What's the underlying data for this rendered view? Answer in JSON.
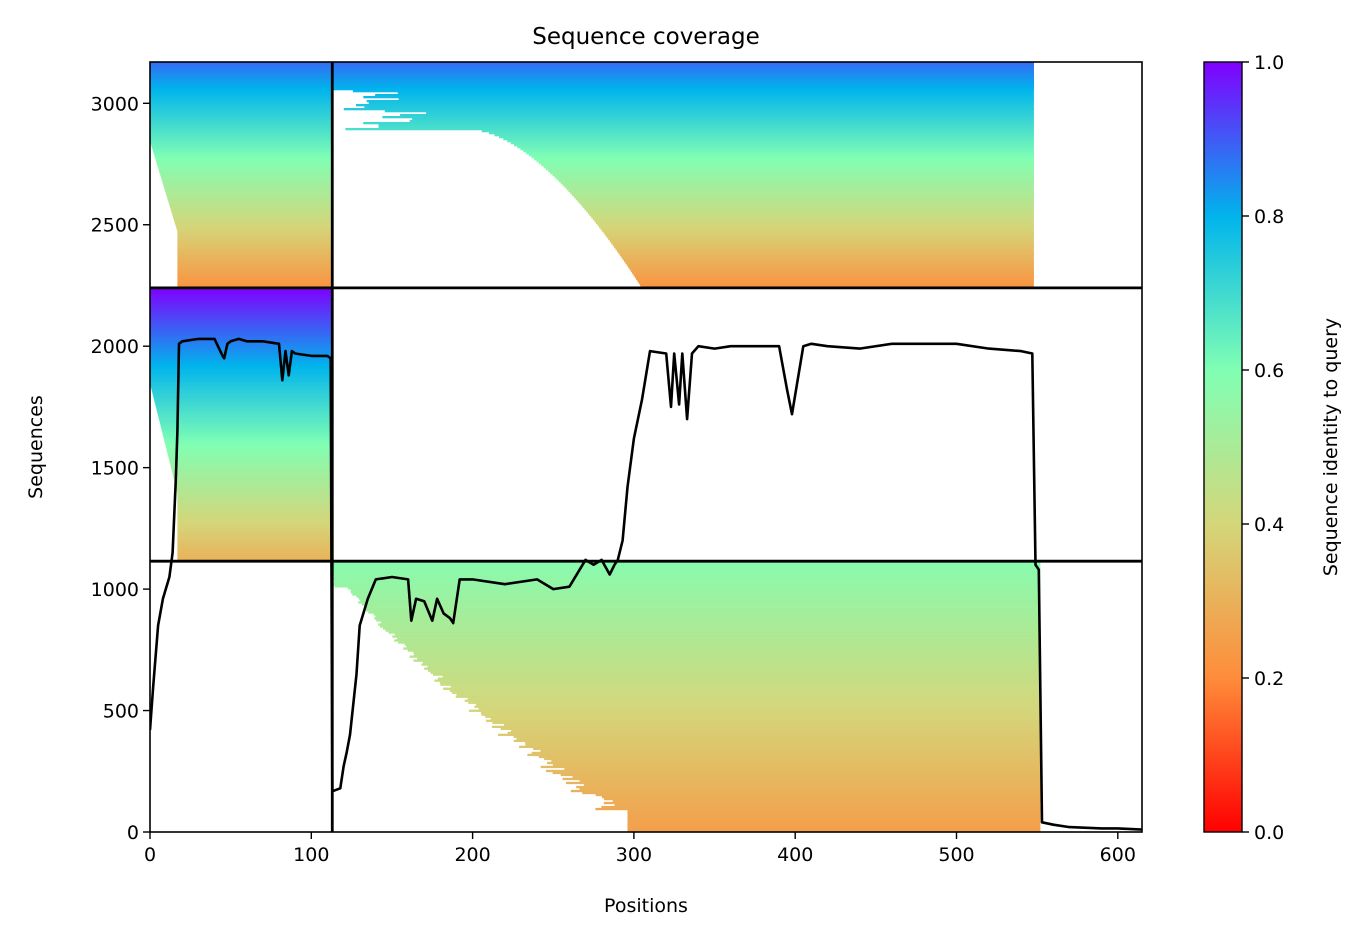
{
  "chart_data": {
    "type": "heatmap",
    "title": "Sequence coverage",
    "xlabel": "Positions",
    "ylabel": "Sequences",
    "xlim": [
      0,
      615
    ],
    "ylim": [
      0,
      3170
    ],
    "xticks": [
      0,
      100,
      200,
      300,
      400,
      500,
      600
    ],
    "yticks": [
      0,
      500,
      1000,
      1500,
      2000,
      2500,
      3000
    ],
    "colorbar": {
      "label": "Sequence identity to query",
      "range": [
        0.0,
        1.0
      ],
      "ticks": [
        0.0,
        0.2,
        0.4,
        0.6,
        0.8,
        1.0
      ],
      "colormap": "rainbow_r",
      "colors": [
        "#ff0000",
        "#ff8c3a",
        "#d4d67a",
        "#80ffb4",
        "#00b4ec",
        "#8000ff"
      ]
    },
    "block_boundaries": {
      "x": [
        113
      ],
      "y": [
        1115,
        2240
      ]
    },
    "blocks": [
      {
        "name": "chain-1-block",
        "x": [
          0,
          113
        ],
        "y": [
          1115,
          2240
        ],
        "x_start_min": 17,
        "x_end": 113,
        "identity_top": 1.0,
        "identity_bottom": 0.3
      },
      {
        "name": "chain-2-block",
        "x": [
          113,
          615
        ],
        "y": [
          0,
          1115
        ],
        "x_start_min": 113,
        "x_end": 552,
        "identity_top": 0.58,
        "identity_bottom": 0.25
      },
      {
        "name": "paired-block-left",
        "x": [
          0,
          113
        ],
        "y": [
          2240,
          3170
        ],
        "x_start_min": 17,
        "x_end": 113,
        "identity_top": 0.88,
        "identity_bottom": 0.22
      },
      {
        "name": "paired-block-right",
        "x": [
          113,
          615
        ],
        "y": [
          2240,
          3170
        ],
        "x_start_min": 113,
        "x_end": 548,
        "identity_top": 0.88,
        "identity_bottom": 0.22
      }
    ],
    "coverage_line": {
      "x": [
        0,
        2,
        5,
        8,
        12,
        14,
        16,
        17,
        18,
        20,
        30,
        40,
        45,
        46,
        48,
        50,
        55,
        60,
        70,
        80,
        82,
        84,
        86,
        88,
        90,
        100,
        110,
        112,
        113,
        114,
        118,
        120,
        122,
        124,
        128,
        130,
        135,
        140,
        150,
        160,
        162,
        165,
        170,
        175,
        178,
        182,
        186,
        188,
        192,
        200,
        220,
        240,
        250,
        260,
        270,
        275,
        280,
        285,
        288,
        290,
        293,
        296,
        300,
        305,
        310,
        320,
        323,
        325,
        328,
        330,
        333,
        336,
        340,
        350,
        360,
        370,
        380,
        390,
        395,
        398,
        400,
        405,
        410,
        420,
        440,
        460,
        480,
        500,
        520,
        540,
        547,
        549,
        551,
        553,
        560,
        570,
        590,
        600,
        615
      ],
      "y": [
        420,
        600,
        850,
        960,
        1050,
        1150,
        1450,
        1650,
        2010,
        2020,
        2030,
        2030,
        1960,
        1950,
        2010,
        2020,
        2030,
        2020,
        2020,
        2010,
        1860,
        1980,
        1880,
        1980,
        1970,
        1960,
        1960,
        1950,
        170,
        170,
        180,
        270,
        330,
        400,
        650,
        850,
        960,
        1040,
        1050,
        1040,
        870,
        960,
        950,
        870,
        960,
        900,
        880,
        860,
        1040,
        1040,
        1020,
        1040,
        1000,
        1010,
        1120,
        1100,
        1120,
        1060,
        1100,
        1120,
        1200,
        1420,
        1620,
        1780,
        1980,
        1970,
        1750,
        1970,
        1760,
        1970,
        1700,
        1970,
        2000,
        1990,
        2000,
        2000,
        2000,
        2000,
        1820,
        1720,
        1800,
        2000,
        2010,
        2000,
        1990,
        2010,
        2010,
        2010,
        1990,
        1980,
        1970,
        1100,
        1080,
        40,
        30,
        20,
        15,
        15,
        10
      ]
    }
  }
}
